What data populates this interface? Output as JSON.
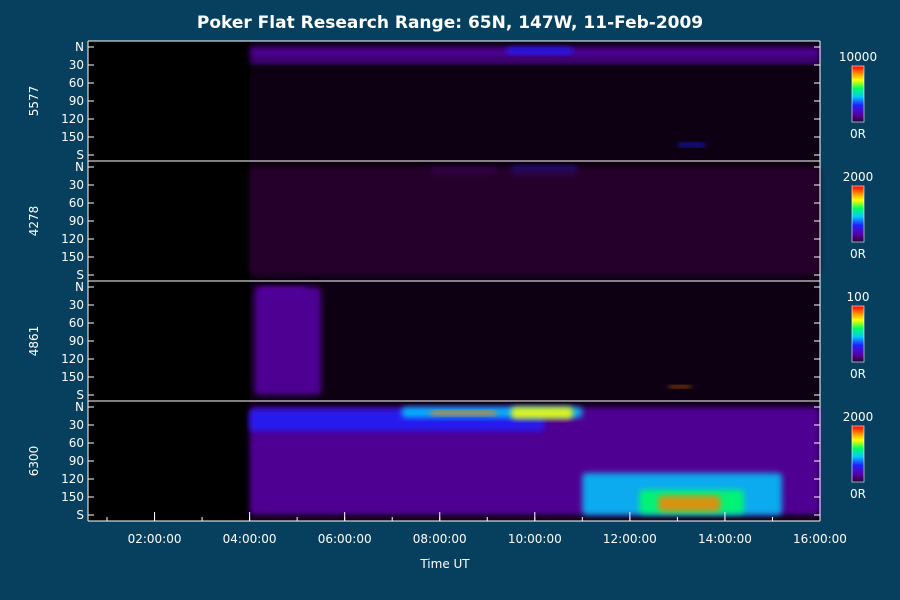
{
  "title": "Poker Flat Research Range: 65N, 147W, 11-Feb-2009",
  "xlabel": "Time UT",
  "colors": {
    "background": "#07405f",
    "axes": "#ffffff",
    "plot_background": "#000000",
    "colormap": [
      "#2a0030",
      "#5a00a8",
      "#2020ff",
      "#00c8ff",
      "#00ff60",
      "#ffff00",
      "#ff8000",
      "#ff0000"
    ]
  },
  "chart_data": {
    "type": "heatmap",
    "title": "Poker Flat Research Range: 65N, 147W, 11-Feb-2009",
    "xlabel": "Time UT",
    "x_ticks": [
      "02:00:00",
      "04:00:00",
      "06:00:00",
      "08:00:00",
      "10:00:00",
      "12:00:00",
      "14:00:00",
      "16:00:00"
    ],
    "x_tick_hours": [
      2,
      4,
      6,
      8,
      10,
      12,
      14,
      16
    ],
    "x_range_hours": [
      0.6,
      16.0
    ],
    "data_start_hour": 4.0,
    "y_ticks": [
      "N",
      "30",
      "60",
      "90",
      "120",
      "150",
      "S"
    ],
    "y_tick_values": [
      0,
      30,
      60,
      90,
      120,
      150,
      180
    ],
    "y_range": [
      0,
      180
    ],
    "panels": [
      {
        "ylabel": "5577",
        "colorbar": {
          "max_label": "10000",
          "min_label": "0R",
          "max": 10000,
          "min": 0
        },
        "features": [
          {
            "t0": 4.0,
            "t1": 16.0,
            "y0": 0,
            "y1": 20,
            "level": 0.16
          },
          {
            "t0": 4.0,
            "t1": 16.0,
            "y0": 20,
            "y1": 28,
            "level": 0.08
          },
          {
            "t0": 9.4,
            "t1": 10.8,
            "y0": 0,
            "y1": 12,
            "level": 0.3
          },
          {
            "t0": 13.0,
            "t1": 13.6,
            "y0": 160,
            "y1": 166,
            "level": 0.35
          }
        ]
      },
      {
        "ylabel": "4278",
        "colorbar": {
          "max_label": "2000",
          "min_label": "0R",
          "max": 2000,
          "min": 0
        },
        "features": [
          {
            "t0": 7.8,
            "t1": 9.2,
            "y0": 2,
            "y1": 14,
            "level": 0.14
          },
          {
            "t0": 9.5,
            "t1": 10.9,
            "y0": 0,
            "y1": 16,
            "level": 0.25
          },
          {
            "t0": 4.0,
            "t1": 16.0,
            "y0": 0,
            "y1": 180,
            "level": 0.04
          }
        ]
      },
      {
        "ylabel": "4861",
        "colorbar": {
          "max_label": "100",
          "min_label": "0R",
          "max": 100,
          "min": 0
        },
        "features": [
          {
            "t0": 4.1,
            "t1": 5.5,
            "y0": 0,
            "y1": 180,
            "level": 0.08
          },
          {
            "t0": 4.2,
            "t1": 5.2,
            "y0": 0,
            "y1": 10,
            "level": 0.14
          },
          {
            "t0": 12.8,
            "t1": 13.3,
            "y0": 164,
            "y1": 168,
            "level": 0.85
          }
        ]
      },
      {
        "ylabel": "6300",
        "colorbar": {
          "max_label": "2000",
          "min_label": "0R",
          "max": 2000,
          "min": 0
        },
        "features": [
          {
            "t0": 4.0,
            "t1": 16.0,
            "y0": 0,
            "y1": 180,
            "level": 0.17
          },
          {
            "t0": 4.0,
            "t1": 10.2,
            "y0": 4,
            "y1": 40,
            "level": 0.3
          },
          {
            "t0": 7.2,
            "t1": 11.0,
            "y0": 0,
            "y1": 18,
            "level": 0.48
          },
          {
            "t0": 7.8,
            "t1": 9.2,
            "y0": 6,
            "y1": 14,
            "level": 0.85
          },
          {
            "t0": 9.5,
            "t1": 10.8,
            "y0": 0,
            "y1": 20,
            "level": 0.72
          },
          {
            "t0": 11.0,
            "t1": 15.2,
            "y0": 110,
            "y1": 180,
            "level": 0.42
          },
          {
            "t0": 12.2,
            "t1": 14.4,
            "y0": 138,
            "y1": 178,
            "level": 0.62
          },
          {
            "t0": 12.6,
            "t1": 13.9,
            "y0": 148,
            "y1": 174,
            "level": 0.92
          }
        ]
      }
    ]
  }
}
